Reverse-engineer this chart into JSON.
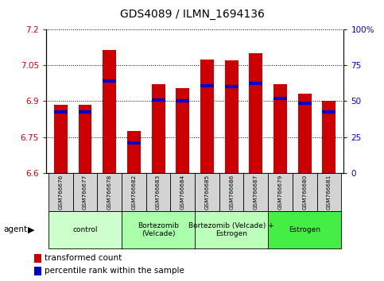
{
  "title": "GDS4089 / ILMN_1694136",
  "samples": [
    "GSM766676",
    "GSM766677",
    "GSM766678",
    "GSM766682",
    "GSM766683",
    "GSM766684",
    "GSM766685",
    "GSM766686",
    "GSM766687",
    "GSM766679",
    "GSM766680",
    "GSM766681"
  ],
  "red_values": [
    6.885,
    6.885,
    7.115,
    6.775,
    6.97,
    6.955,
    7.075,
    7.07,
    7.1,
    6.97,
    6.93,
    6.9
  ],
  "blue_values": [
    6.855,
    6.855,
    6.985,
    6.725,
    6.905,
    6.9,
    6.965,
    6.96,
    6.975,
    6.91,
    6.89,
    6.855
  ],
  "ylim_left": [
    6.6,
    7.2
  ],
  "ylim_right": [
    0,
    100
  ],
  "yticks_left": [
    6.6,
    6.75,
    6.9,
    7.05,
    7.2
  ],
  "yticks_right": [
    0,
    25,
    50,
    75,
    100
  ],
  "ytick_labels_left": [
    "6.6",
    "6.75",
    "6.9",
    "7.05",
    "7.2"
  ],
  "ytick_labels_right": [
    "0",
    "25",
    "50",
    "75",
    "100%"
  ],
  "groups": [
    {
      "label": "control",
      "indices": [
        0,
        1,
        2
      ],
      "color": "#ccffcc"
    },
    {
      "label": "Bortezomib\n(Velcade)",
      "indices": [
        3,
        4,
        5
      ],
      "color": "#aaffaa"
    },
    {
      "label": "Bortezomib (Velcade) +\nEstrogen",
      "indices": [
        6,
        7,
        8
      ],
      "color": "#bbffbb"
    },
    {
      "label": "Estrogen",
      "indices": [
        9,
        10,
        11
      ],
      "color": "#44ee44"
    }
  ],
  "bar_color": "#cc0000",
  "blue_color": "#0000cc",
  "bar_width": 0.55,
  "base_value": 6.6,
  "legend_items": [
    {
      "color": "#cc0000",
      "label": "transformed count"
    },
    {
      "color": "#0000cc",
      "label": "percentile rank within the sample"
    }
  ],
  "agent_label": "agent"
}
